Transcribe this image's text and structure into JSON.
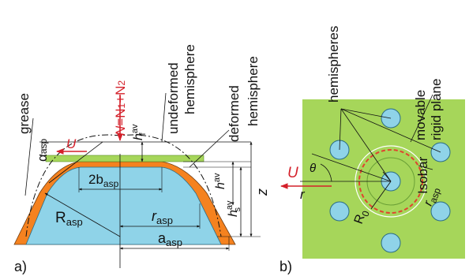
{
  "left": {
    "panel_label": "a)",
    "grease": "grease",
    "alpha": "α",
    "alpha_sub": "asp",
    "U": "U",
    "force_N": "N",
    "force_eq": "=N",
    "force_sub1": "1",
    "force_plus": "+N",
    "force_sub2": "2",
    "hf": "h",
    "hf_sup": "av",
    "hf_sub": "f",
    "undeformed": [
      "undeformed",
      "hemisphere"
    ],
    "deformed": [
      "deformed",
      "hemisphere"
    ],
    "b": "2b",
    "b_sub": "asp",
    "h": "h",
    "h_sup": "av",
    "hs": "h",
    "hs_sup": "av",
    "hs_sub": "s",
    "z": "z",
    "R": "R",
    "R_sub": "asp",
    "r": "r",
    "r_sub": "asp",
    "a": "a",
    "a_sub": "asp"
  },
  "right": {
    "panel_label": "b)",
    "hemispheres": "hemispheres",
    "movable": [
      "movable",
      "rigid plane"
    ],
    "isobar": "Isobar",
    "U": "U",
    "theta": "θ",
    "r": "r",
    "rasp": "r",
    "rasp_sub": "asp",
    "R0": "R",
    "R0_sub": "0"
  },
  "colors": {
    "fluid": "#8fd3e8",
    "grease": "#f5821f",
    "plane": "#a6d65a",
    "red": "#d4202a",
    "isobar": "#e0432f"
  }
}
